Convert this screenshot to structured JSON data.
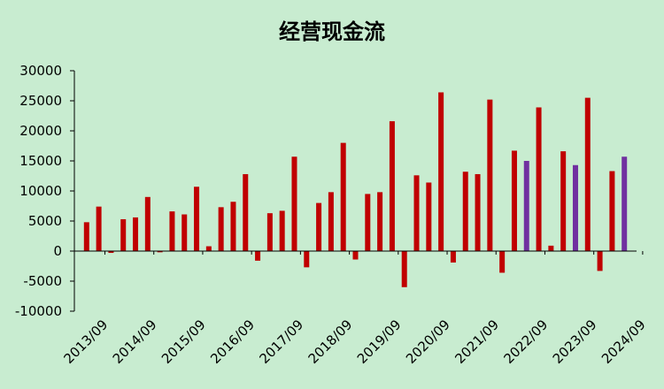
{
  "chart_data": {
    "type": "bar",
    "title": "经营现金流",
    "xlabel": "",
    "ylabel": "",
    "ylim": [
      -10000,
      30000
    ],
    "yticks": [
      30000,
      25000,
      20000,
      15000,
      10000,
      5000,
      0,
      -5000,
      -10000
    ],
    "x_tick_labels": [
      "2013/09",
      "2014/09",
      "2015/09",
      "2016/09",
      "2017/09",
      "2018/09",
      "2019/09",
      "2020/09",
      "2021/09",
      "2022/09",
      "2023/09",
      "2024/09"
    ],
    "grid": false,
    "legend": "none",
    "colors": {
      "default": "#c00000",
      "highlight": "#7030a0"
    },
    "values": [
      4800,
      7400,
      -300,
      5300,
      5600,
      9000,
      -200,
      6600,
      6100,
      10700,
      800,
      7300,
      8200,
      12800,
      -1600,
      6300,
      6700,
      15700,
      -2700,
      8000,
      9800,
      18000,
      -1400,
      9500,
      9800,
      21600,
      -6000,
      12600,
      11400,
      26400,
      -1900,
      13200,
      12800,
      25200,
      -3600,
      16700,
      15000,
      23900,
      900,
      16600,
      14300,
      25500,
      -3300,
      13300,
      15700
    ],
    "highlight_indices": [
      36,
      40,
      44
    ],
    "x_tick_positions": [
      2,
      6,
      10,
      14,
      18,
      22,
      26,
      30,
      34,
      38,
      42,
      46
    ]
  }
}
